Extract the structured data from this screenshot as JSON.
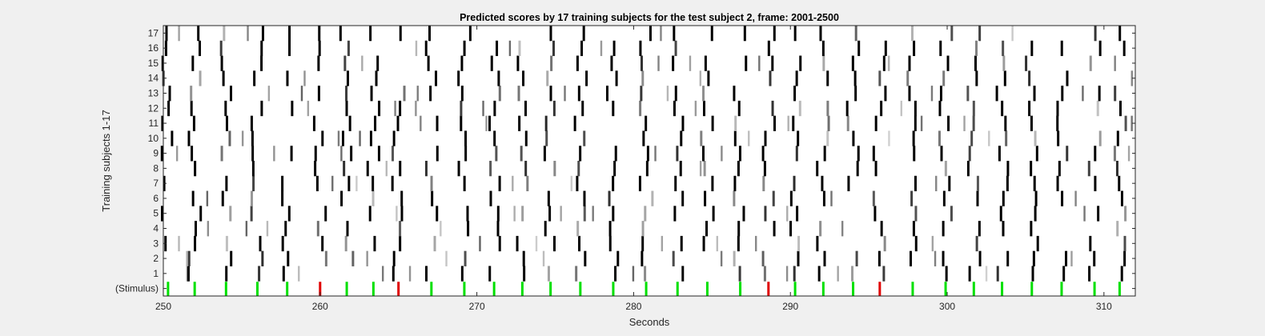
{
  "chart_data": {
    "type": "heatmap",
    "title": "Predicted scores by 17 training subjects for the test subject 2, frame: 2001-2500",
    "xlabel": "Seconds",
    "ylabel": "Training subjects 1-17",
    "xlim": [
      250,
      312
    ],
    "x_ticks": [
      250,
      260,
      270,
      280,
      290,
      300,
      310
    ],
    "rows": [
      "(Stimulus)",
      "1",
      "2",
      "3",
      "4",
      "5",
      "6",
      "7",
      "8",
      "9",
      "10",
      "11",
      "12",
      "13",
      "14",
      "15",
      "16",
      "17"
    ],
    "colors": {
      "stimulus_green": "#00e000",
      "stimulus_red": "#e00000",
      "score_dark": "#000000",
      "background": "#ffffff"
    },
    "stimulus": [
      {
        "t": 250.3,
        "c": "green"
      },
      {
        "t": 252.0,
        "c": "green"
      },
      {
        "t": 254.0,
        "c": "green"
      },
      {
        "t": 256.0,
        "c": "green"
      },
      {
        "t": 257.9,
        "c": "green"
      },
      {
        "t": 260.0,
        "c": "red"
      },
      {
        "t": 261.7,
        "c": "green"
      },
      {
        "t": 263.4,
        "c": "green"
      },
      {
        "t": 265.0,
        "c": "red"
      },
      {
        "t": 267.1,
        "c": "green"
      },
      {
        "t": 269.2,
        "c": "green"
      },
      {
        "t": 271.1,
        "c": "green"
      },
      {
        "t": 272.9,
        "c": "green"
      },
      {
        "t": 274.7,
        "c": "green"
      },
      {
        "t": 276.6,
        "c": "green"
      },
      {
        "t": 278.7,
        "c": "green"
      },
      {
        "t": 280.8,
        "c": "green"
      },
      {
        "t": 282.8,
        "c": "green"
      },
      {
        "t": 284.7,
        "c": "green"
      },
      {
        "t": 286.8,
        "c": "green"
      },
      {
        "t": 288.6,
        "c": "red"
      },
      {
        "t": 290.3,
        "c": "green"
      },
      {
        "t": 292.1,
        "c": "green"
      },
      {
        "t": 294.0,
        "c": "green"
      },
      {
        "t": 295.7,
        "c": "red"
      },
      {
        "t": 297.8,
        "c": "green"
      },
      {
        "t": 299.9,
        "c": "green"
      },
      {
        "t": 301.7,
        "c": "green"
      },
      {
        "t": 303.5,
        "c": "green"
      },
      {
        "t": 305.4,
        "c": "green"
      },
      {
        "t": 307.3,
        "c": "green"
      },
      {
        "t": 309.4,
        "c": "green"
      },
      {
        "t": 311.0,
        "c": "green"
      }
    ],
    "score_events": [
      250.3,
      252.0,
      254.0,
      256.0,
      257.9,
      260.0,
      261.7,
      263.4,
      265.0,
      267.1,
      269.2,
      271.1,
      272.9,
      274.7,
      276.6,
      278.7,
      280.8,
      282.8,
      284.7,
      286.8,
      288.6,
      290.3,
      292.1,
      294.0,
      295.7,
      297.8,
      299.9,
      301.7,
      303.5,
      305.4,
      307.3,
      309.4,
      311.0
    ],
    "value_range": [
      0,
      1
    ],
    "grid": false
  }
}
